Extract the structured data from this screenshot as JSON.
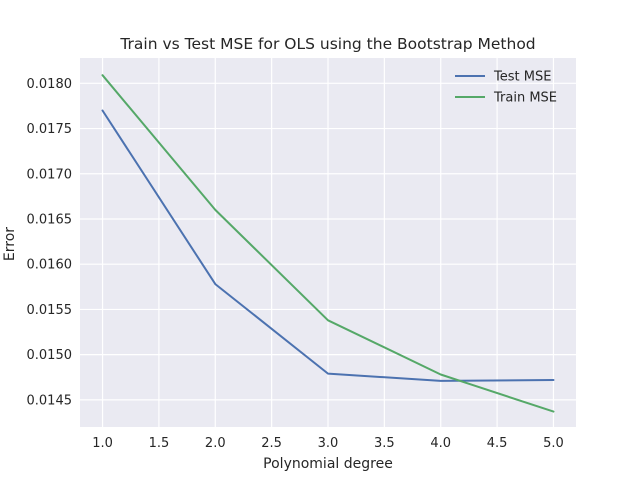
{
  "chart_data": {
    "type": "line",
    "title": "Train vs Test MSE for OLS using the Bootstrap Method",
    "xlabel": "Polynomial degree",
    "ylabel": "Error",
    "x": [
      1,
      2,
      3,
      4,
      5
    ],
    "series": [
      {
        "name": "Test MSE",
        "color": "#4c72b0",
        "values": [
          0.0177,
          0.01578,
          0.01479,
          0.01471,
          0.01472
        ]
      },
      {
        "name": "Train MSE",
        "color": "#55a868",
        "values": [
          0.01809,
          0.0166,
          0.01538,
          0.01478,
          0.01437
        ]
      }
    ],
    "xlim": [
      0.8,
      5.2
    ],
    "ylim": [
      0.0142,
      0.01828
    ],
    "xticks": [
      "1.0",
      "1.5",
      "2.0",
      "2.5",
      "3.0",
      "3.5",
      "4.0",
      "4.5",
      "5.0"
    ],
    "xtick_values": [
      1.0,
      1.5,
      2.0,
      2.5,
      3.0,
      3.5,
      4.0,
      4.5,
      5.0
    ],
    "yticks": [
      "0.0145",
      "0.0150",
      "0.0155",
      "0.0160",
      "0.0165",
      "0.0170",
      "0.0175",
      "0.0180"
    ],
    "ytick_values": [
      0.0145,
      0.015,
      0.0155,
      0.016,
      0.0165,
      0.017,
      0.0175,
      0.018
    ],
    "grid": true,
    "legend_position": "top-right",
    "style": {
      "background": "#eaeaf2",
      "grid_color": "#ffffff"
    }
  }
}
